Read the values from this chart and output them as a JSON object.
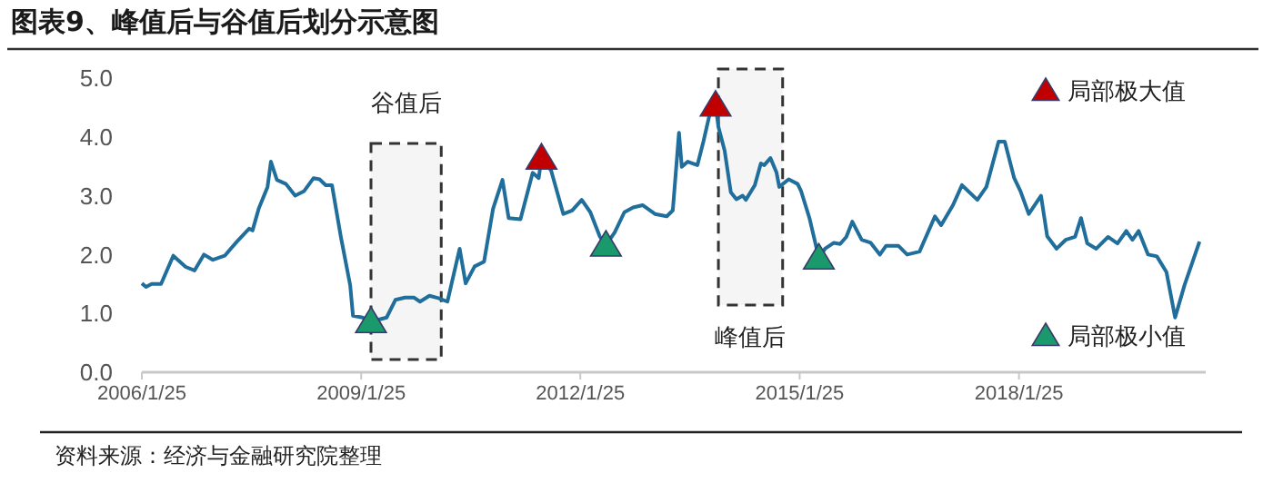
{
  "chart_data": {
    "type": "line",
    "title": "图表9、峰值后与谷值后划分示意图",
    "x": [
      "2006-01-25",
      "2006-02-15",
      "2006-03-15",
      "2006-05-01",
      "2006-07-01",
      "2006-09-01",
      "2006-10-15",
      "2006-12-01",
      "2007-01-15",
      "2007-03-15",
      "2007-05-15",
      "2007-07-15",
      "2007-08-01",
      "2007-09-01",
      "2007-10-15",
      "2007-11-01",
      "2007-12-01",
      "2008-01-15",
      "2008-03-01",
      "2008-04-15",
      "2008-06-01",
      "2008-07-01",
      "2008-08-01",
      "2008-09-01",
      "2008-10-15",
      "2008-12-01",
      "2008-12-15",
      "2009-02-01",
      "2009-03-15",
      "2009-06-01",
      "2009-07-15",
      "2009-09-01",
      "2009-10-15",
      "2009-11-15",
      "2010-01-01",
      "2010-02-15",
      "2010-04-01",
      "2010-06-01",
      "2010-07-01",
      "2010-08-15",
      "2010-10-01",
      "2010-11-15",
      "2011-01-01",
      "2011-02-01",
      "2011-04-01",
      "2011-06-01",
      "2011-07-01",
      "2011-07-15",
      "2011-09-01",
      "2011-11-01",
      "2011-12-15",
      "2012-02-01",
      "2012-03-15",
      "2012-05-01",
      "2012-06-01",
      "2012-07-15",
      "2012-09-01",
      "2012-10-15",
      "2012-12-01",
      "2013-02-01",
      "2013-04-01",
      "2013-05-01",
      "2013-06-01",
      "2013-06-15",
      "2013-07-15",
      "2013-09-01",
      "2013-10-01",
      "2013-11-01",
      "2013-12-01",
      "2013-12-15",
      "2014-01-15",
      "2014-02-15",
      "2014-03-15",
      "2014-04-15",
      "2014-05-01",
      "2014-06-15",
      "2014-07-15",
      "2014-08-01",
      "2014-09-01",
      "2014-10-01",
      "2014-10-15",
      "2014-12-01",
      "2015-01-15",
      "2015-02-01",
      "2015-03-15",
      "2015-05-01",
      "2015-06-01",
      "2015-07-15",
      "2015-08-15",
      "2015-09-15",
      "2015-10-15",
      "2015-12-01",
      "2016-01-15",
      "2016-03-01",
      "2016-04-01",
      "2016-06-01",
      "2016-07-15",
      "2016-09-15",
      "2016-12-01",
      "2017-01-01",
      "2017-03-01",
      "2017-04-15",
      "2017-07-01",
      "2017-08-15",
      "2017-10-15",
      "2017-11-15",
      "2018-01-01",
      "2018-02-01",
      "2018-03-15",
      "2018-05-15",
      "2018-06-15",
      "2018-08-01",
      "2018-09-15",
      "2018-11-01",
      "2018-12-01",
      "2019-01-01",
      "2019-02-15",
      "2019-04-15",
      "2019-06-01",
      "2019-07-15",
      "2019-08-15",
      "2019-09-15",
      "2019-11-01",
      "2019-12-15",
      "2020-02-01",
      "2020-03-15",
      "2020-05-01",
      "2020-07-15"
    ],
    "series": [
      {
        "type": "line",
        "color": "#1f6e9c",
        "values": [
          1.51,
          1.45,
          1.5,
          1.5,
          1.98,
          1.79,
          1.73,
          2.0,
          1.91,
          1.98,
          2.22,
          2.44,
          2.41,
          2.78,
          3.15,
          3.58,
          3.27,
          3.2,
          3.0,
          3.08,
          3.3,
          3.28,
          3.18,
          3.18,
          2.31,
          1.48,
          0.96,
          0.93,
          0.86,
          0.93,
          1.23,
          1.27,
          1.27,
          1.2,
          1.3,
          1.26,
          1.2,
          2.1,
          1.51,
          1.8,
          1.88,
          2.78,
          3.27,
          2.62,
          2.6,
          3.39,
          3.3,
          3.64,
          3.43,
          2.69,
          2.75,
          2.93,
          2.72,
          2.31,
          2.16,
          2.38,
          2.72,
          2.8,
          2.84,
          2.69,
          2.65,
          2.75,
          4.07,
          3.49,
          3.58,
          3.52,
          3.92,
          4.38,
          4.54,
          4.17,
          3.77,
          3.06,
          2.94,
          3.0,
          2.93,
          3.18,
          3.55,
          3.52,
          3.64,
          3.4,
          3.15,
          3.28,
          3.2,
          3.08,
          2.62,
          1.94,
          2.1,
          2.2,
          2.18,
          2.3,
          2.56,
          2.25,
          2.2,
          2.0,
          2.15,
          2.15,
          2.0,
          2.05,
          2.65,
          2.5,
          2.84,
          3.18,
          2.93,
          3.15,
          3.92,
          3.92,
          3.3,
          3.08,
          2.69,
          3.0,
          2.31,
          2.1,
          2.25,
          2.3,
          2.62,
          2.19,
          2.1,
          2.3,
          2.19,
          2.4,
          2.25,
          2.4,
          2.0,
          1.97,
          1.7,
          0.93,
          1.48,
          2.22
        ]
      },
      {
        "type": "scatter",
        "name": "局部极大值",
        "color": "#c00000",
        "marker": "triangle",
        "x": [
          "2011-07-15",
          "2013-12-01"
        ],
        "values": [
          3.64,
          4.54
        ]
      },
      {
        "type": "scatter",
        "name": "局部极小值",
        "color": "#1a9a6c",
        "marker": "triangle",
        "x": [
          "2009-03-15",
          "2012-06-01",
          "2015-05-01"
        ],
        "values": [
          0.86,
          2.16,
          1.94
        ]
      }
    ],
    "xlim": [
      "2006-01-25",
      "2020-08-15"
    ],
    "xticks": [
      {
        "value": "2006-01-25",
        "label": "2006/1/25"
      },
      {
        "value": "2009-01-25",
        "label": "2009/1/25"
      },
      {
        "value": "2012-01-25",
        "label": "2012/1/25"
      },
      {
        "value": "2015-01-25",
        "label": "2015/1/25"
      },
      {
        "value": "2018-01-25",
        "label": "2018/1/25"
      }
    ],
    "ylim": [
      0,
      5
    ],
    "yticks": [
      {
        "value": 0,
        "label": "0.0"
      },
      {
        "value": 1,
        "label": "1.0"
      },
      {
        "value": 2,
        "label": "2.0"
      },
      {
        "value": 3,
        "label": "3.0"
      },
      {
        "value": 4,
        "label": "4.0"
      },
      {
        "value": 5,
        "label": "5.0"
      }
    ],
    "bands": [
      {
        "axis": "x",
        "from": "2009-03-15",
        "to": "2010-03-01",
        "label": "谷值后"
      },
      {
        "axis": "x",
        "from": "2013-12-15",
        "to": "2014-11-01",
        "label": "峰值后"
      }
    ],
    "legend": "right",
    "grid": false,
    "annotations": [
      "资料来源：经济与金融研究院整理"
    ]
  }
}
